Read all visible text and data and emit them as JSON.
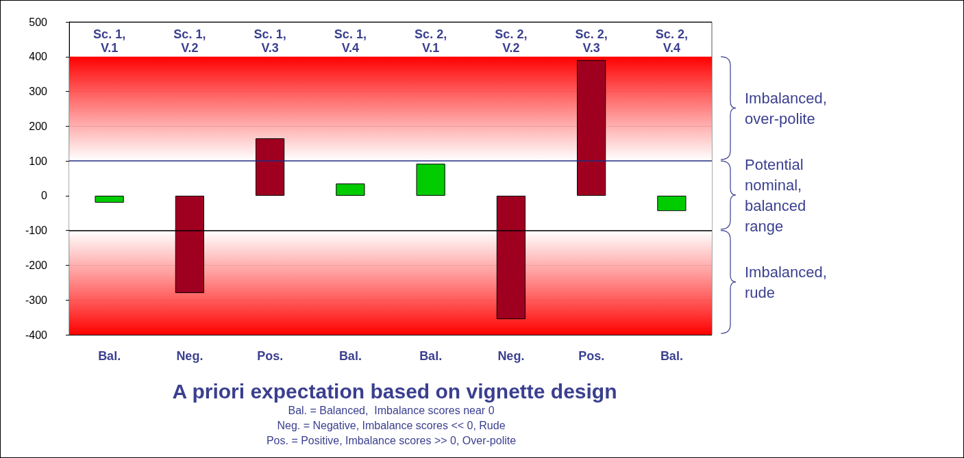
{
  "chart_data": {
    "type": "bar",
    "title": "A priori expectation based on vignette design",
    "categories": [
      "Sc. 1,\nV.1",
      "Sc. 1,\nV.2",
      "Sc. 1,\nV.3",
      "Sc. 1,\nV.4",
      "Sc. 2,\nV.1",
      "Sc. 2,\nV.2",
      "Sc. 2,\nV.3",
      "Sc. 2,\nV.4"
    ],
    "values": [
      -20,
      -280,
      165,
      35,
      92,
      -355,
      390,
      -44
    ],
    "colors": [
      "#00cc00",
      "#a00020",
      "#a00020",
      "#00cc00",
      "#00cc00",
      "#a00020",
      "#a00020",
      "#00cc00"
    ],
    "ylim": [
      -400,
      500
    ],
    "yticks": [
      -400,
      -300,
      -200,
      -100,
      0,
      100,
      200,
      300,
      400,
      500
    ],
    "grid": "y",
    "bands": [
      {
        "axis": "y",
        "from": 100,
        "to": 400,
        "label": "Imbalanced,\nover-polite",
        "color": "#ff0000"
      },
      {
        "axis": "y",
        "from": -100,
        "to": 100,
        "label": "Potential\nnominal,\nbalanced\nrange",
        "color": "#ffffff"
      },
      {
        "axis": "y",
        "from": -400,
        "to": -100,
        "label": "Imbalanced,\nrude",
        "color": "#ff0000"
      }
    ],
    "ref_lines": [
      {
        "axis": "y",
        "value": 100,
        "color": "#1f2a80"
      },
      {
        "axis": "y",
        "value": -100,
        "color": "#000000"
      }
    ],
    "annotations": [
      "Bal.",
      "Neg.",
      "Pos.",
      "Bal.",
      "Bal.",
      "Neg.",
      "Pos.",
      "Bal.",
      "Bal. = Balanced,  Imbalance scores near 0",
      "Neg. = Negative, Imbalance scores << 0, Rude",
      "Pos. = Positive, Imbalance scores >> 0, Over-polite"
    ]
  }
}
